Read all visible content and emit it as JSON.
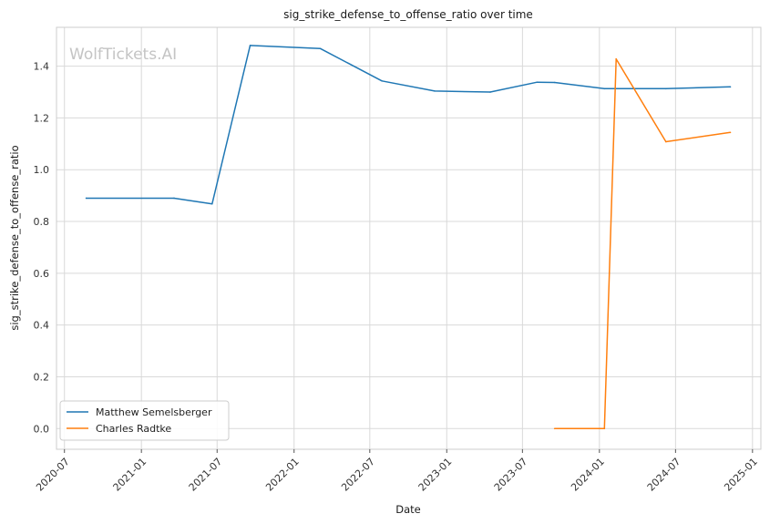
{
  "chart_data": {
    "type": "line",
    "title": "sig_strike_defense_to_offense_ratio over time",
    "xlabel": "Date",
    "ylabel": "sig_strike_defense_to_offense_ratio",
    "watermark": "WolfTickets.AI",
    "x_ticks": [
      "2020-07",
      "2021-01",
      "2021-07",
      "2022-01",
      "2022-07",
      "2023-01",
      "2023-07",
      "2024-01",
      "2024-07",
      "2025-01"
    ],
    "y_ticks": [
      "0.0",
      "0.2",
      "0.4",
      "0.6",
      "0.8",
      "1.0",
      "1.2",
      "1.4"
    ],
    "xlim": [
      "2020-06-12",
      "2025-01-21"
    ],
    "ylim": [
      -0.08,
      1.55
    ],
    "grid": true,
    "legend_position": "lower-left",
    "series": [
      {
        "name": "Matthew Semelsberger",
        "color": "#1f77b4",
        "points": [
          {
            "x": "2020-08-22",
            "y": 0.89
          },
          {
            "x": "2021-03-20",
            "y": 0.89
          },
          {
            "x": "2021-06-19",
            "y": 0.868
          },
          {
            "x": "2021-09-18",
            "y": 1.48
          },
          {
            "x": "2022-03-05",
            "y": 1.468
          },
          {
            "x": "2022-07-30",
            "y": 1.343
          },
          {
            "x": "2022-12-03",
            "y": 1.304
          },
          {
            "x": "2023-04-15",
            "y": 1.3
          },
          {
            "x": "2023-08-05",
            "y": 1.338
          },
          {
            "x": "2023-09-16",
            "y": 1.337
          },
          {
            "x": "2024-01-13",
            "y": 1.313
          },
          {
            "x": "2024-06-08",
            "y": 1.313
          },
          {
            "x": "2024-11-09",
            "y": 1.32
          }
        ]
      },
      {
        "name": "Charles Radtke",
        "color": "#ff7f0e",
        "points": [
          {
            "x": "2023-09-16",
            "y": 0.0
          },
          {
            "x": "2024-01-13",
            "y": 0.0
          },
          {
            "x": "2024-02-10",
            "y": 1.428
          },
          {
            "x": "2024-06-08",
            "y": 1.108
          },
          {
            "x": "2024-11-09",
            "y": 1.144
          }
        ]
      }
    ]
  }
}
